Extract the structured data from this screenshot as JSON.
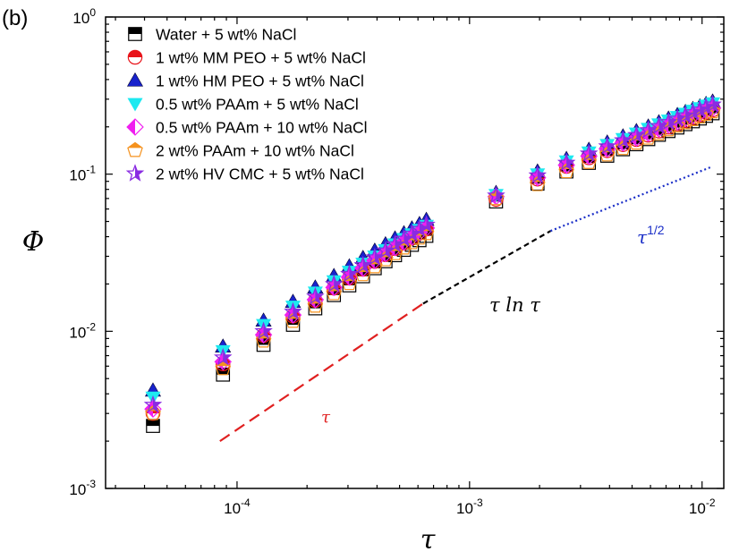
{
  "panel_label": "(b)",
  "chart_data": {
    "type": "scatter",
    "xscale": "log",
    "yscale": "log",
    "xlim": [
      2.72e-05,
      0.0124
    ],
    "ylim": [
      0.001,
      1
    ],
    "xlabel": "τ",
    "ylabel": "Φ",
    "x_ticks": [
      {
        "value": 0.0001,
        "base": "10",
        "exp": "-4"
      },
      {
        "value": 0.001,
        "base": "10",
        "exp": "-3"
      },
      {
        "value": 0.01,
        "base": "10",
        "exp": "-2"
      }
    ],
    "y_ticks": [
      {
        "value": 0.001,
        "base": "10",
        "exp": "-3"
      },
      {
        "value": 0.01,
        "base": "10",
        "exp": "-2"
      },
      {
        "value": 0.1,
        "base": "10",
        "exp": "-1"
      },
      {
        "value": 1,
        "base": "10",
        "exp": "0"
      }
    ],
    "legend_position": "top-left",
    "series": [
      {
        "name": "Water + 5 wt% NaCl",
        "marker": "square-half",
        "color": "#000000",
        "x": [
          4.35e-05,
          8.7e-05,
          0.00013,
          0.000174,
          0.000217,
          0.000261,
          0.000304,
          0.000348,
          0.000391,
          0.000435,
          0.000478,
          0.000522,
          0.000565,
          0.000609,
          0.000652,
          0.0013,
          0.00196,
          0.00261,
          0.00326,
          0.00391,
          0.00457,
          0.00522,
          0.00587,
          0.00652,
          0.00717,
          0.00783,
          0.00848,
          0.00913,
          0.00978,
          0.0104,
          0.0111
        ],
        "y": [
          0.0025,
          0.0053,
          0.0082,
          0.011,
          0.014,
          0.017,
          0.0196,
          0.0224,
          0.0252,
          0.0279,
          0.0305,
          0.033,
          0.0355,
          0.038,
          0.0405,
          0.067,
          0.087,
          0.104,
          0.118,
          0.131,
          0.144,
          0.155,
          0.167,
          0.178,
          0.188,
          0.198,
          0.208,
          0.217,
          0.226,
          0.235,
          0.244
        ]
      },
      {
        "name": "1 wt% MM PEO + 5 wt% NaCl",
        "marker": "circle-half",
        "color": "#e8141a",
        "x": [
          4.35e-05,
          8.7e-05,
          0.00013,
          0.000174,
          0.000217,
          0.000261,
          0.000304,
          0.000348,
          0.000391,
          0.000435,
          0.000478,
          0.000522,
          0.000565,
          0.000609,
          0.000652,
          0.0013,
          0.00196,
          0.00261,
          0.00326,
          0.00391,
          0.00457,
          0.00522,
          0.00587,
          0.00652,
          0.00717,
          0.00783,
          0.00848,
          0.00913,
          0.00978,
          0.0104,
          0.0111
        ],
        "y": [
          0.003,
          0.0062,
          0.0094,
          0.0125,
          0.0157,
          0.0188,
          0.0218,
          0.0248,
          0.0278,
          0.0307,
          0.0336,
          0.0364,
          0.0392,
          0.042,
          0.0447,
          0.069,
          0.093,
          0.112,
          0.127,
          0.141,
          0.154,
          0.166,
          0.177,
          0.188,
          0.199,
          0.209,
          0.219,
          0.229,
          0.238,
          0.247,
          0.256
        ]
      },
      {
        "name": "1 wt% HM PEO + 5 wt% NaCl",
        "marker": "triangle-up",
        "color": "#1822cc",
        "x": [
          4.35e-05,
          8.7e-05,
          0.00013,
          0.000174,
          0.000217,
          0.000261,
          0.000304,
          0.000348,
          0.000391,
          0.000435,
          0.000478,
          0.000522,
          0.000565,
          0.000609,
          0.000652,
          0.0013,
          0.00196,
          0.00261,
          0.00326,
          0.00391,
          0.00457,
          0.00522,
          0.00587,
          0.00652,
          0.00717,
          0.00783,
          0.00848,
          0.00913,
          0.00978,
          0.0104,
          0.0111
        ],
        "y": [
          0.0042,
          0.008,
          0.0117,
          0.0154,
          0.019,
          0.0225,
          0.0259,
          0.0293,
          0.0326,
          0.0358,
          0.039,
          0.0421,
          0.0452,
          0.0482,
          0.0512,
          0.076,
          0.104,
          0.125,
          0.143,
          0.159,
          0.174,
          0.188,
          0.201,
          0.214,
          0.226,
          0.238,
          0.249,
          0.26,
          0.27,
          0.28,
          0.29
        ]
      },
      {
        "name": "0.5 wt% PAAm + 5 wt% NaCl",
        "marker": "triangle-down",
        "color": "#1de9f0",
        "x": [
          4.35e-05,
          8.7e-05,
          0.00013,
          0.000174,
          0.000217,
          0.000261,
          0.000304,
          0.000348,
          0.000391,
          0.000435,
          0.000478,
          0.000522,
          0.000565,
          0.000609,
          0.000652,
          0.0013,
          0.00196,
          0.00261,
          0.00326,
          0.00391,
          0.00457,
          0.00522,
          0.00587,
          0.00652,
          0.00717,
          0.00783,
          0.00848,
          0.00913,
          0.00978,
          0.0104,
          0.0111
        ],
        "y": [
          0.0038,
          0.0075,
          0.011,
          0.0144,
          0.0177,
          0.0209,
          0.024,
          0.027,
          0.03,
          0.033,
          0.0359,
          0.0388,
          0.0416,
          0.0444,
          0.0471,
          0.074,
          0.1,
          0.121,
          0.138,
          0.154,
          0.168,
          0.182,
          0.195,
          0.208,
          0.22,
          0.232,
          0.243,
          0.254,
          0.264,
          0.274,
          0.283
        ]
      },
      {
        "name": "0.5 wt% PAAm + 10 wt% NaCl",
        "marker": "diamond-half",
        "color": "#f01ef0",
        "x": [
          4.35e-05,
          8.7e-05,
          0.00013,
          0.000174,
          0.000217,
          0.000261,
          0.000304,
          0.000348,
          0.000391,
          0.000435,
          0.000478,
          0.000522,
          0.000565,
          0.000609,
          0.000652,
          0.0013,
          0.00196,
          0.00261,
          0.00326,
          0.00391,
          0.00457,
          0.00522,
          0.00587,
          0.00652,
          0.00717,
          0.00783,
          0.00848,
          0.00913,
          0.00978,
          0.0104,
          0.0111
        ],
        "y": [
          0.0032,
          0.0064,
          0.0095,
          0.0127,
          0.0159,
          0.019,
          0.0221,
          0.0252,
          0.0282,
          0.0312,
          0.0341,
          0.037,
          0.0398,
          0.0426,
          0.0454,
          0.072,
          0.095,
          0.114,
          0.13,
          0.145,
          0.158,
          0.17,
          0.182,
          0.194,
          0.205,
          0.215,
          0.226,
          0.236,
          0.245,
          0.254,
          0.263
        ]
      },
      {
        "name": "2 wt% PAAm + 10 wt% NaCl",
        "marker": "pentagon-half",
        "color": "#f5921e",
        "x": [
          4.35e-05,
          8.7e-05,
          0.00013,
          0.000174,
          0.000217,
          0.000261,
          0.000304,
          0.000348,
          0.000391,
          0.000435,
          0.000478,
          0.000522,
          0.000565,
          0.000609,
          0.000652,
          0.0013,
          0.00196,
          0.00261,
          0.00326,
          0.00391,
          0.00457,
          0.00522,
          0.00587,
          0.00652,
          0.00717,
          0.00783,
          0.00848,
          0.00913,
          0.00978,
          0.0104,
          0.0111
        ],
        "y": [
          0.003,
          0.0058,
          0.0087,
          0.0116,
          0.0145,
          0.0174,
          0.0202,
          0.023,
          0.0258,
          0.0286,
          0.0313,
          0.034,
          0.0367,
          0.0393,
          0.0419,
          0.07,
          0.086,
          0.104,
          0.119,
          0.133,
          0.146,
          0.158,
          0.17,
          0.181,
          0.192,
          0.203,
          0.213,
          0.223,
          0.232,
          0.241,
          0.25
        ]
      },
      {
        "name": "2 wt% HV CMC + 5 wt% NaCl",
        "marker": "star",
        "color": "#8a2be2",
        "x": [
          4.35e-05,
          8.7e-05,
          0.00013,
          0.000174,
          0.000217,
          0.000261,
          0.000304,
          0.000348,
          0.000391,
          0.000435,
          0.000478,
          0.000522,
          0.000565,
          0.000609,
          0.000652,
          0.0013,
          0.00196,
          0.00261,
          0.00326,
          0.00391,
          0.00457,
          0.00522,
          0.00587,
          0.00652,
          0.00717,
          0.00783,
          0.00848,
          0.00913,
          0.00978,
          0.0104,
          0.0111
        ],
        "y": [
          0.0034,
          0.0068,
          0.01,
          0.0133,
          0.0166,
          0.0199,
          0.0231,
          0.0263,
          0.0295,
          0.0326,
          0.0357,
          0.0387,
          0.0417,
          0.0447,
          0.0476,
          0.073,
          0.098,
          0.118,
          0.135,
          0.15,
          0.164,
          0.177,
          0.19,
          0.202,
          0.214,
          0.225,
          0.236,
          0.247,
          0.257,
          0.267,
          0.277
        ]
      }
    ],
    "scaling_lines": [
      {
        "label": "τ",
        "color": "#e02020",
        "style": "dashed",
        "x": [
          8.44e-05,
          0.000631
        ],
        "y": [
          0.002,
          0.015
        ]
      },
      {
        "label": "τ ln τ",
        "color": "#000000",
        "style": "dashed",
        "x": [
          0.000631,
          0.00223
        ],
        "y": [
          0.015,
          0.0435
        ]
      },
      {
        "label": "τ",
        "label_sup": "1/2",
        "color": "#1a2ec7",
        "style": "dotted",
        "x": [
          0.00223,
          0.0111
        ],
        "y": [
          0.0435,
          0.112
        ]
      }
    ]
  }
}
